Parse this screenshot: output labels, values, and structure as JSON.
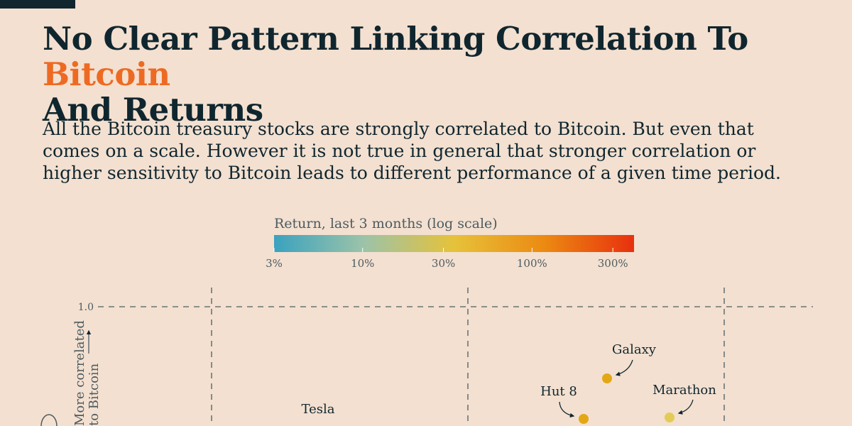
{
  "header": {
    "title_main": "No Clear Pattern Linking Correlation To ",
    "title_accent": "Bitcoin",
    "title_tail": "And Returns",
    "subtitle": "All the Bitcoin treasury stocks are strongly correlated to Bitcoin. But even that comes on a scale. However it is not true in general that stronger correlation or higher sensitivity to Bitcoin leads to different performance of a given time period.",
    "accent_color": "#ee6a22"
  },
  "legend": {
    "title": "Return, last 3 months (log scale)",
    "ticks": [
      "3%",
      "10%",
      "30%",
      "100%",
      "300%"
    ],
    "tick_values": [
      3,
      10,
      30,
      100,
      300
    ],
    "domain": [
      3,
      400
    ],
    "colors": [
      "#3aa2bf",
      "#9cc3a8",
      "#e6c23a",
      "#ec8a12",
      "#e8300e"
    ]
  },
  "chart_data": {
    "type": "scatter",
    "title": "",
    "ylabel_line1": "More correlated",
    "ylabel_line2": "to Bitcoin",
    "y_tick_label": "1.0",
    "grid": "dashed",
    "points": [
      {
        "label": "Galaxy",
        "color": "#e3a716"
      },
      {
        "label": "Hut 8",
        "color": "#e3a716"
      },
      {
        "label": "Marathon",
        "color": "#e2cc57"
      },
      {
        "label": "Tesla",
        "color": "#e3a716"
      }
    ]
  }
}
